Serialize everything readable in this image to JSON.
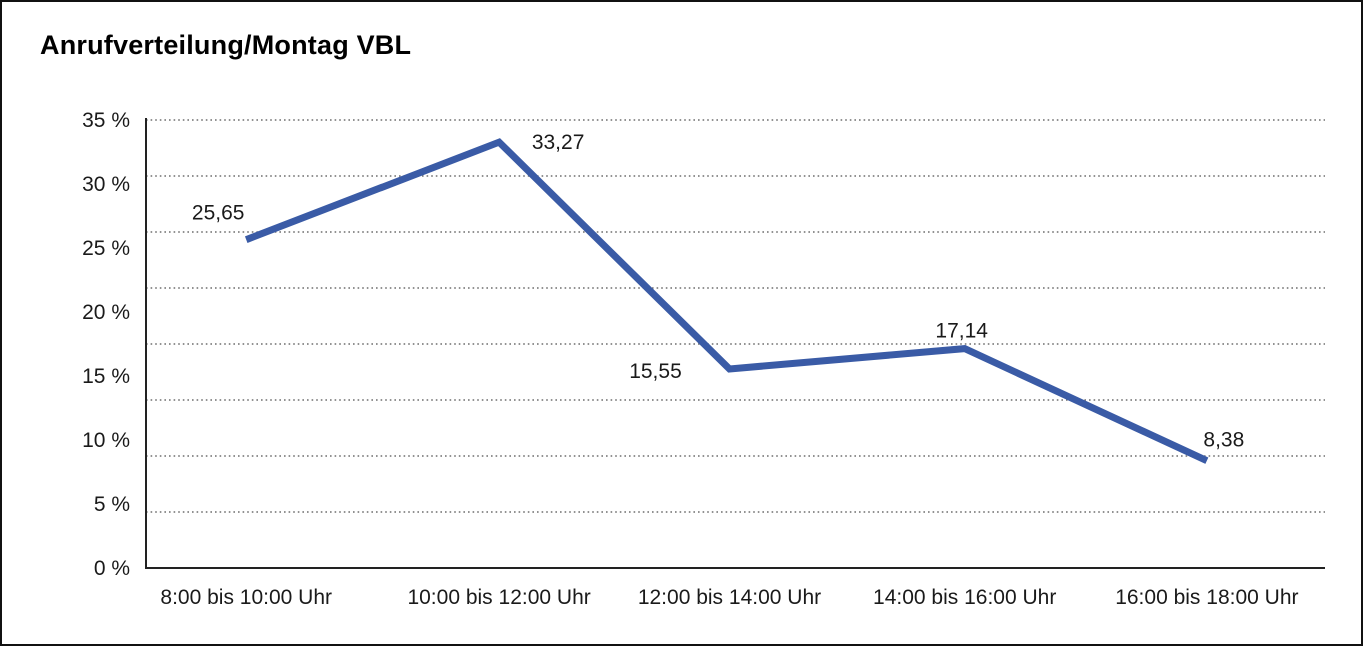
{
  "title": "Anrufverteilung/Montag VBL",
  "chart_data": {
    "type": "line",
    "title": "Anrufverteilung/Montag VBL",
    "categories": [
      "8:00 bis 10:00 Uhr",
      "10:00 bis 12:00 Uhr",
      "12:00 bis 14:00 Uhr",
      "14:00 bis 16:00 Uhr",
      "16:00 bis 18:00 Uhr"
    ],
    "values": [
      25.65,
      33.27,
      15.55,
      17.14,
      8.38
    ],
    "value_labels": [
      "25,65",
      "33,27",
      "15,55",
      "17,14",
      "8,38"
    ],
    "xlabel": "",
    "ylabel": "",
    "ylim": [
      0,
      35
    ],
    "y_tick_step": 5,
    "y_tick_labels": [
      "0 %",
      "5 %",
      "10 %",
      "15 %",
      "20 %",
      "25 %",
      "30 %",
      "35 %"
    ],
    "grid": "horizontal-dotted",
    "gridline_count": 9,
    "legend_position": "none",
    "colors": {
      "line": "#3A5BA6",
      "axis": "#222222",
      "grid_dots": "#6e6e6e",
      "text": "#1a1a1a",
      "background": "#ffffff",
      "border": "#111111"
    }
  }
}
